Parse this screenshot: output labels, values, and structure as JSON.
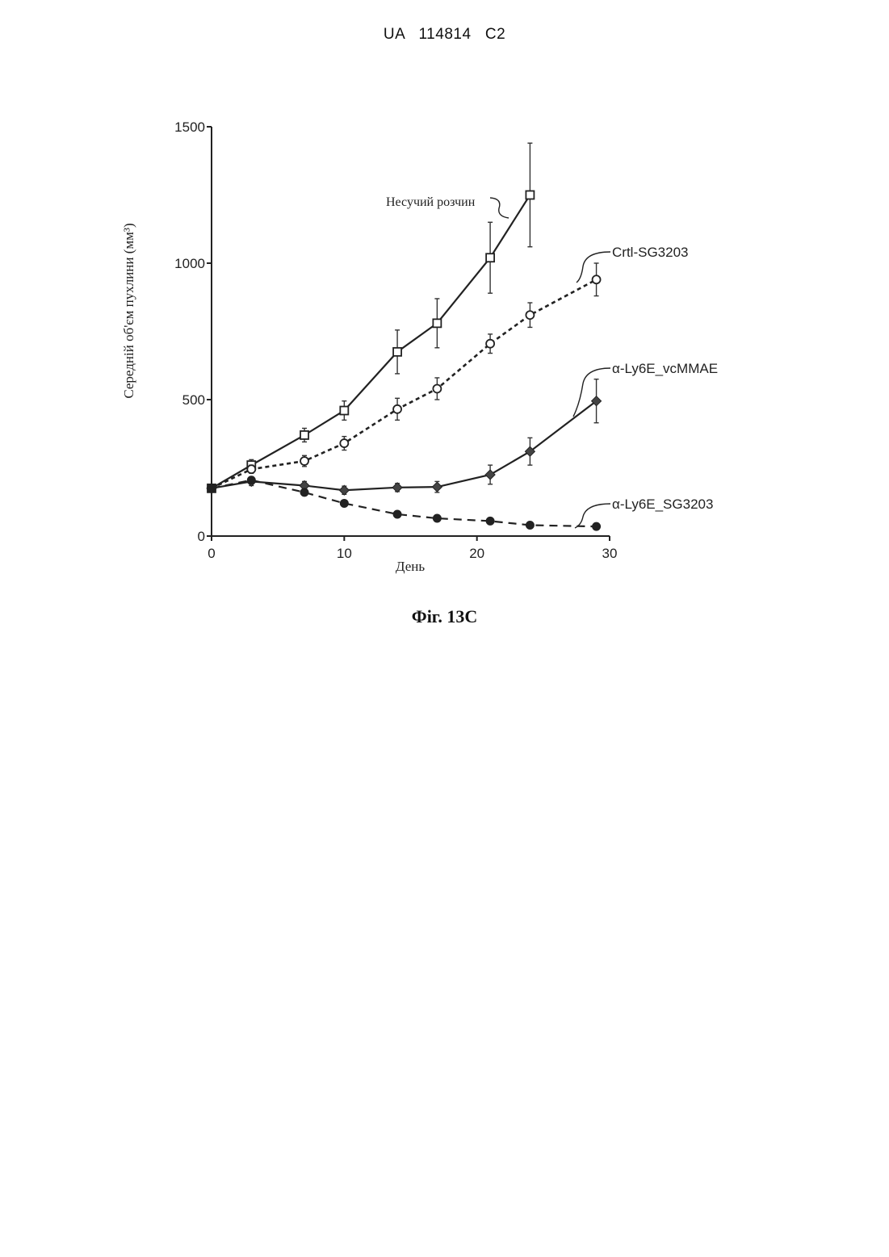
{
  "header": {
    "doc_id": "UA   114814   C2"
  },
  "figure": {
    "caption": "Фіг. 13C"
  },
  "chart_data": {
    "type": "line",
    "xlabel": "День",
    "ylabel": "Середній об'єм пухлини (мм³)",
    "xlim": [
      0,
      30
    ],
    "ylim": [
      0,
      1500
    ],
    "x_ticks": [
      0,
      10,
      20,
      30
    ],
    "y_ticks": [
      0,
      500,
      1000,
      1500
    ],
    "grid": false,
    "legend": "inline labels with leader lines",
    "series": [
      {
        "name": "Несучий розчин",
        "line": "solid",
        "marker": "open-square",
        "x": [
          0,
          3,
          7,
          10,
          14,
          17,
          21,
          24
        ],
        "y": [
          175,
          260,
          370,
          460,
          675,
          780,
          1020,
          1250
        ],
        "err": [
          10,
          20,
          25,
          35,
          80,
          90,
          130,
          190
        ]
      },
      {
        "name": "Crtl-SG3203",
        "line": "dashed",
        "marker": "open-circle",
        "x": [
          0,
          3,
          7,
          10,
          14,
          17,
          21,
          24,
          29
        ],
        "y": [
          175,
          245,
          275,
          340,
          465,
          540,
          705,
          810,
          940
        ],
        "err": [
          10,
          15,
          20,
          25,
          40,
          40,
          35,
          45,
          60
        ]
      },
      {
        "name": "α-Ly6E_vcMMAE",
        "line": "solid",
        "marker": "filled-diamond",
        "x": [
          0,
          3,
          7,
          10,
          14,
          17,
          21,
          24,
          29
        ],
        "y": [
          175,
          200,
          185,
          168,
          178,
          180,
          225,
          310,
          495
        ],
        "err": [
          10,
          15,
          15,
          15,
          15,
          20,
          35,
          50,
          80
        ]
      },
      {
        "name": "α-Ly6E_SG3203",
        "line": "dashed",
        "marker": "filled-circle",
        "x": [
          0,
          3,
          7,
          10,
          14,
          17,
          21,
          24,
          29
        ],
        "y": [
          175,
          205,
          160,
          120,
          80,
          65,
          55,
          40,
          35
        ],
        "err": [
          10,
          12,
          10,
          8,
          6,
          5,
          5,
          5,
          5
        ]
      }
    ]
  }
}
